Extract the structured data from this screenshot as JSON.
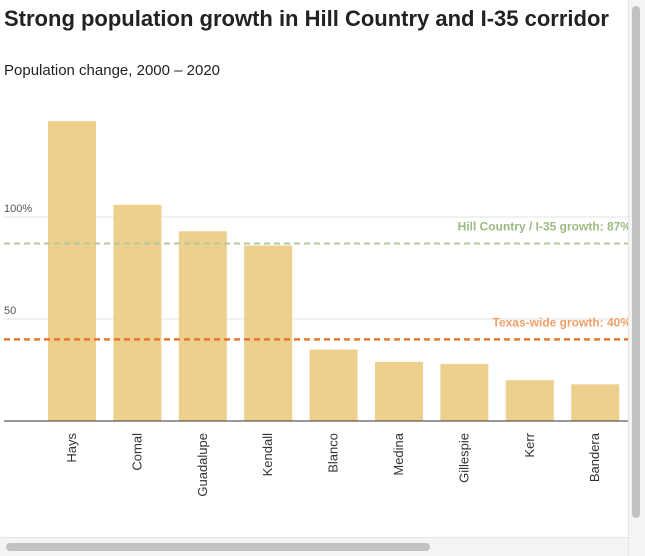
{
  "header": {
    "title": "Strong population growth in Hill Country and I-35 corridor",
    "subtitle": "Population change, 2000 – 2020"
  },
  "colors": {
    "bar": "#EDD08E",
    "hill_country_line": "#B5C99A",
    "hill_country_label": "#9DB983",
    "texas_line": "#E8772E",
    "texas_label": "#F0A068",
    "gridline": "#e3e3e3",
    "axis": "#333333",
    "tick_text": "#555555"
  },
  "chart_data": {
    "type": "bar",
    "title": "Strong population growth in Hill Country and I-35 corridor",
    "subtitle": "Population change, 2000 – 2020",
    "xlabel": "",
    "ylabel": "",
    "categories": [
      "Hays",
      "Comal",
      "Guadalupe",
      "Kendall",
      "Blanco",
      "Medina",
      "Gillespie",
      "Kerr",
      "Bandera"
    ],
    "values": [
      147,
      106,
      93,
      86,
      35,
      29,
      28,
      20,
      18
    ],
    "ylim": [
      0,
      150
    ],
    "y_ticks": [
      50,
      100
    ],
    "y_tick_labels": [
      "50",
      "100%"
    ],
    "grid": true,
    "reference_lines": [
      {
        "value": 87,
        "label": "Hill Country / I-35 growth: 87%",
        "style": "dashed"
      },
      {
        "value": 40,
        "label": "Texas-wide growth: 40%",
        "style": "dashed"
      }
    ]
  }
}
